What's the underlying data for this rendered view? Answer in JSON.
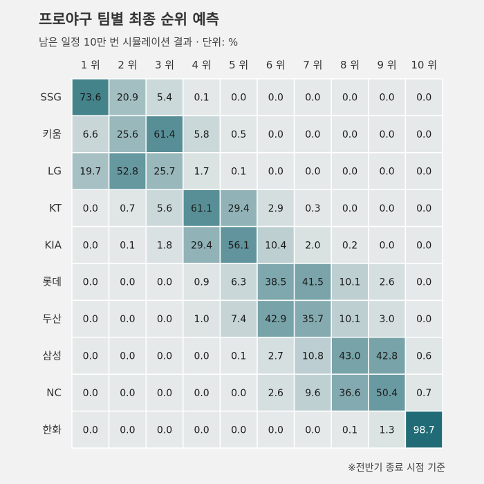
{
  "title": "프로야구 팀별 최종 순위 예측",
  "subtitle": "남은 일정 10만 번 시뮬레이션 결과 · 단위: %",
  "note": "※전반기 종료 시점 기준",
  "colors": {
    "background": "#f2f2f2",
    "low": "#e6e9e9",
    "high": "#1e6a75",
    "gridline": "#ffffff"
  },
  "chart_data": {
    "type": "heatmap",
    "columns": [
      "1 위",
      "2 위",
      "3 위",
      "4 위",
      "5 위",
      "6 위",
      "7 위",
      "8 위",
      "9 위",
      "10 위"
    ],
    "rows": [
      "SSG",
      "키움",
      "LG",
      "KT",
      "KIA",
      "롯데",
      "두산",
      "삼성",
      "NC",
      "한화"
    ],
    "values": [
      [
        "73.6",
        "20.9",
        "5.4",
        "0.1",
        "0.0",
        "0.0",
        "0.0",
        "0.0",
        "0.0",
        "0.0"
      ],
      [
        "6.6",
        "25.6",
        "61.4",
        "5.8",
        "0.5",
        "0.0",
        "0.0",
        "0.0",
        "0.0",
        "0.0"
      ],
      [
        "19.7",
        "52.8",
        "25.7",
        "1.7",
        "0.1",
        "0.0",
        "0.0",
        "0.0",
        "0.0",
        "0.0"
      ],
      [
        "0.0",
        "0.7",
        "5.6",
        "61.1",
        "29.4",
        "2.9",
        "0.3",
        "0.0",
        "0.0",
        "0.0"
      ],
      [
        "0.0",
        "0.1",
        "1.8",
        "29.4",
        "56.1",
        "10.4",
        "2.0",
        "0.2",
        "0.0",
        "0.0"
      ],
      [
        "0.0",
        "0.0",
        "0.0",
        "0.9",
        "6.3",
        "38.5",
        "41.5",
        "10.1",
        "2.6",
        "0.0"
      ],
      [
        "0.0",
        "0.0",
        "0.0",
        "1.0",
        "7.4",
        "42.9",
        "35.7",
        "10.1",
        "3.0",
        "0.0"
      ],
      [
        "0.0",
        "0.0",
        "0.0",
        "0.0",
        "0.1",
        "2.7",
        "10.8",
        "43.0",
        "42.8",
        "0.6"
      ],
      [
        "0.0",
        "0.0",
        "0.0",
        "0.0",
        "0.0",
        "2.6",
        "9.6",
        "36.6",
        "50.4",
        "0.7"
      ],
      [
        "0.0",
        "0.0",
        "0.0",
        "0.0",
        "0.0",
        "0.0",
        "0.0",
        "0.1",
        "1.3",
        "98.7"
      ]
    ],
    "value_range": [
      0,
      100
    ],
    "unit": "%"
  }
}
